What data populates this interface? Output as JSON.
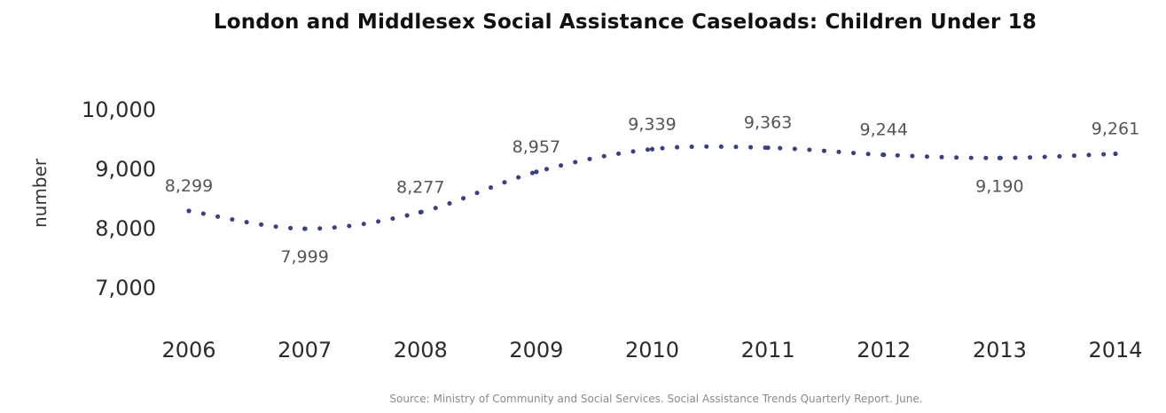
{
  "chart_data": {
    "type": "line",
    "title": "London and Middlesex Social Assistance Caseloads: Children Under 18",
    "ylabel": "number",
    "xlabel": "",
    "x": [
      2006,
      2007,
      2008,
      2009,
      2010,
      2011,
      2012,
      2013,
      2014
    ],
    "categories": [
      "2006",
      "2007",
      "2008",
      "2009",
      "2010",
      "2011",
      "2012",
      "2013",
      "2014"
    ],
    "values": [
      8299,
      7999,
      8277,
      8957,
      9339,
      9363,
      9244,
      9190,
      9261
    ],
    "data_labels": [
      "8,299",
      "7,999",
      "8,277",
      "8,957",
      "9,339",
      "9,363",
      "9,244",
      "9,190",
      "9,261"
    ],
    "yticks": [
      7000,
      8000,
      9000,
      10000
    ],
    "ytick_labels": [
      "7,000",
      "8,000",
      "9,000",
      "10,000"
    ],
    "ylim": [
      7000,
      10000
    ],
    "line_style": "dotted",
    "grid": false,
    "legend": "none",
    "colors": {
      "series": "#3b3f7e",
      "title": "#111111",
      "tick_text": "#2b2b2b",
      "data_label_text": "#555555",
      "source_text": "#8a8a8a"
    }
  },
  "source_note": "Source: Ministry of Community and Social Services.  Social Assistance Trends Quarterly Report. June."
}
